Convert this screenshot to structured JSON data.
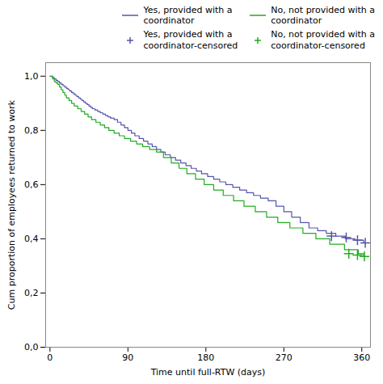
{
  "chart_data": {
    "type": "step",
    "xlabel": "Time until full-RTW (days)",
    "ylabel": "Cum proportion of employees returned to work",
    "xlim": [
      -5,
      370
    ],
    "ylim": [
      0.0,
      1.05
    ],
    "xticks": [
      0,
      90,
      180,
      270,
      360
    ],
    "yticks": [
      {
        "value": 0.0,
        "label": "0,0"
      },
      {
        "value": 0.2,
        "label": "0,2"
      },
      {
        "value": 0.4,
        "label": "0,4"
      },
      {
        "value": 0.6,
        "label": "0,6"
      },
      {
        "value": 0.8,
        "label": "0,8"
      },
      {
        "value": 1.0,
        "label": "1,0"
      }
    ],
    "legend": "upper right",
    "series": [
      {
        "name": "Yes, provided with a\ncoordinator",
        "type": "step",
        "color": "#5555aa",
        "x": [
          0,
          3,
          5,
          7,
          9,
          11,
          13,
          15,
          17,
          19,
          21,
          23,
          25,
          27,
          29,
          31,
          33,
          35,
          37,
          39,
          41,
          43,
          45,
          47,
          49,
          52,
          55,
          58,
          61,
          64,
          67,
          70,
          74,
          78,
          82,
          86,
          90,
          94,
          98,
          103,
          108,
          113,
          118,
          123,
          128,
          133,
          139,
          145,
          151,
          157,
          163,
          169,
          175,
          182,
          189,
          196,
          203,
          211,
          219,
          227,
          235,
          243,
          252,
          261,
          270,
          279,
          289,
          299,
          309,
          319,
          330,
          341,
          352,
          362
        ],
        "values": [
          1.0,
          0.995,
          0.99,
          0.985,
          0.98,
          0.975,
          0.97,
          0.965,
          0.96,
          0.955,
          0.95,
          0.945,
          0.94,
          0.935,
          0.93,
          0.925,
          0.92,
          0.915,
          0.91,
          0.905,
          0.9,
          0.895,
          0.89,
          0.885,
          0.88,
          0.875,
          0.87,
          0.865,
          0.86,
          0.855,
          0.85,
          0.845,
          0.84,
          0.83,
          0.82,
          0.81,
          0.8,
          0.79,
          0.78,
          0.77,
          0.76,
          0.75,
          0.74,
          0.73,
          0.72,
          0.71,
          0.7,
          0.69,
          0.68,
          0.67,
          0.66,
          0.65,
          0.64,
          0.63,
          0.62,
          0.61,
          0.6,
          0.59,
          0.58,
          0.57,
          0.56,
          0.55,
          0.54,
          0.52,
          0.5,
          0.48,
          0.46,
          0.44,
          0.43,
          0.42,
          0.41,
          0.4,
          0.395,
          0.385
        ]
      },
      {
        "name": "No, not provided with a\ncoordinator",
        "type": "step",
        "color": "#22aa22",
        "x": [
          0,
          3,
          5,
          7,
          9,
          11,
          13,
          15,
          17,
          19,
          22,
          25,
          28,
          32,
          36,
          40,
          44,
          48,
          53,
          58,
          63,
          68,
          74,
          80,
          86,
          93,
          100,
          107,
          115,
          123,
          131,
          140,
          149,
          158,
          168,
          178,
          189,
          200,
          212,
          224,
          237,
          250,
          263,
          277,
          292,
          307,
          323,
          340,
          356,
          362
        ],
        "values": [
          1.0,
          0.99,
          0.98,
          0.975,
          0.97,
          0.96,
          0.95,
          0.94,
          0.93,
          0.92,
          0.91,
          0.9,
          0.89,
          0.88,
          0.87,
          0.86,
          0.85,
          0.84,
          0.83,
          0.82,
          0.81,
          0.8,
          0.79,
          0.78,
          0.77,
          0.76,
          0.75,
          0.74,
          0.73,
          0.72,
          0.7,
          0.68,
          0.66,
          0.64,
          0.62,
          0.6,
          0.58,
          0.56,
          0.54,
          0.52,
          0.5,
          0.48,
          0.46,
          0.44,
          0.42,
          0.4,
          0.38,
          0.36,
          0.345,
          0.335
        ]
      },
      {
        "name": "Yes, provided with a\ncoordinator-censored",
        "type": "scatter",
        "marker": "plus",
        "color": "#5555aa",
        "x": [
          325,
          342,
          355,
          364
        ],
        "values": [
          0.41,
          0.405,
          0.395,
          0.385
        ]
      },
      {
        "name": "No, not provided with a\ncoordinator-censored",
        "type": "scatter",
        "marker": "plus",
        "color": "#22aa22",
        "x": [
          345,
          355,
          363
        ],
        "values": [
          0.345,
          0.34,
          0.335
        ]
      }
    ]
  }
}
